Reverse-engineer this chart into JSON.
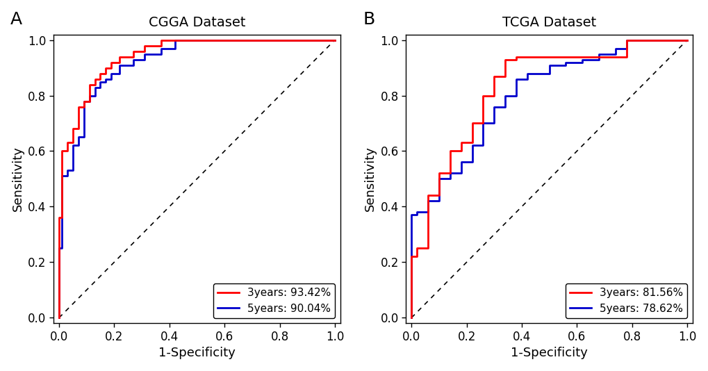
{
  "cgga_title": "CGGA Dataset",
  "tcga_title": "TCGA Dataset",
  "xlabel": "1-Specificity",
  "ylabel": "Sensitivity",
  "panel_a_label": "A",
  "panel_b_label": "B",
  "cgga_3yr_auc": "93.42%",
  "cgga_5yr_auc": "90.04%",
  "tcga_3yr_auc": "81.56%",
  "tcga_5yr_auc": "78.62%",
  "color_3yr": "#FF0000",
  "color_5yr": "#0000CC",
  "background": "#FFFFFF",
  "xlim": [
    -0.02,
    1.02
  ],
  "ylim": [
    -0.02,
    1.02
  ],
  "tick_vals": [
    0.0,
    0.2,
    0.4,
    0.6,
    0.8,
    1.0
  ],
  "tick_labels": [
    "0.0",
    "0.2",
    "0.4",
    "0.6",
    "0.8",
    "1.0"
  ],
  "cgga_3yr_fpr": [
    0.0,
    0.0,
    0.01,
    0.03,
    0.05,
    0.07,
    0.09,
    0.11,
    0.13,
    0.15,
    0.17,
    0.19,
    0.22,
    0.27,
    0.31,
    0.37,
    0.42,
    0.75,
    1.0
  ],
  "cgga_3yr_tpr": [
    0.0,
    0.36,
    0.6,
    0.63,
    0.68,
    0.76,
    0.78,
    0.84,
    0.86,
    0.88,
    0.9,
    0.92,
    0.94,
    0.96,
    0.98,
    1.0,
    1.0,
    1.0,
    1.0
  ],
  "cgga_5yr_fpr": [
    0.0,
    0.0,
    0.01,
    0.03,
    0.05,
    0.07,
    0.09,
    0.11,
    0.13,
    0.15,
    0.17,
    0.19,
    0.22,
    0.27,
    0.31,
    0.37,
    0.42,
    0.75,
    1.0
  ],
  "cgga_5yr_tpr": [
    0.0,
    0.25,
    0.51,
    0.53,
    0.62,
    0.65,
    0.78,
    0.8,
    0.83,
    0.85,
    0.86,
    0.88,
    0.91,
    0.93,
    0.95,
    0.97,
    1.0,
    1.0,
    1.0
  ],
  "tcga_3yr_fpr": [
    0.0,
    0.0,
    0.02,
    0.06,
    0.1,
    0.14,
    0.18,
    0.22,
    0.26,
    0.3,
    0.34,
    0.38,
    0.42,
    0.5,
    0.56,
    0.62,
    0.68,
    0.74,
    0.78,
    1.0
  ],
  "tcga_3yr_tpr": [
    0.0,
    0.22,
    0.25,
    0.44,
    0.52,
    0.6,
    0.63,
    0.7,
    0.8,
    0.87,
    0.93,
    0.94,
    0.94,
    0.94,
    0.94,
    0.94,
    0.94,
    0.94,
    1.0,
    1.0
  ],
  "tcga_5yr_fpr": [
    0.0,
    0.0,
    0.02,
    0.06,
    0.1,
    0.14,
    0.18,
    0.22,
    0.26,
    0.3,
    0.34,
    0.38,
    0.42,
    0.5,
    0.56,
    0.62,
    0.68,
    0.74,
    0.78,
    1.0
  ],
  "tcga_5yr_tpr": [
    0.0,
    0.37,
    0.38,
    0.42,
    0.5,
    0.52,
    0.56,
    0.62,
    0.7,
    0.76,
    0.8,
    0.86,
    0.88,
    0.91,
    0.92,
    0.93,
    0.95,
    0.97,
    1.0,
    1.0
  ],
  "title_fontsize": 14,
  "label_fontsize": 13,
  "tick_fontsize": 12,
  "legend_fontsize": 11,
  "panel_label_fontsize": 18,
  "linewidth": 2.0
}
